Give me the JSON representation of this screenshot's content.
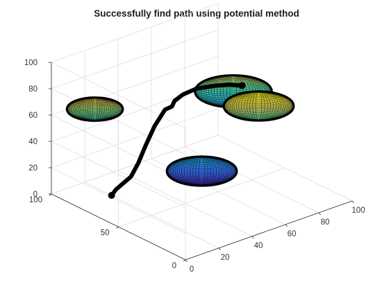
{
  "chart_data": {
    "type": "surface3d",
    "title": "Successfully find path using potential method",
    "xlabel": "",
    "ylabel": "",
    "zlabel": "",
    "xlim": [
      0,
      100
    ],
    "ylim": [
      0,
      100
    ],
    "zlim": [
      0,
      100
    ],
    "x_ticks": [
      "0",
      "20",
      "40",
      "60",
      "80",
      "100"
    ],
    "y_ticks": [
      "0",
      "50",
      "100"
    ],
    "z_ticks": [
      "0",
      "20",
      "40",
      "60",
      "80",
      "100"
    ],
    "grid": true,
    "colormap": "parula",
    "obstacles": [
      {
        "center": [
          10,
          80,
          70
        ],
        "radius": 16
      },
      {
        "center": [
          60,
          20,
          80
        ],
        "radius": 20
      },
      {
        "center": [
          85,
          70,
          55
        ],
        "radius": 22
      },
      {
        "center": [
          50,
          50,
          20
        ],
        "radius": 20
      }
    ],
    "path": {
      "start": [
        20,
        80,
        0
      ],
      "goal": [
        50,
        20,
        100
      ],
      "points": [
        [
          20,
          80,
          0
        ],
        [
          21,
          78,
          5
        ],
        [
          23,
          76,
          9
        ],
        [
          26,
          73,
          15
        ],
        [
          28,
          70,
          26
        ],
        [
          30,
          67,
          40
        ],
        [
          33,
          64,
          55
        ],
        [
          36,
          60,
          68
        ],
        [
          37,
          56,
          72
        ],
        [
          36,
          53,
          78
        ],
        [
          37,
          48,
          85
        ],
        [
          40,
          42,
          91
        ],
        [
          44,
          33,
          96
        ],
        [
          47,
          26,
          99
        ],
        [
          50,
          20,
          100
        ]
      ]
    }
  }
}
